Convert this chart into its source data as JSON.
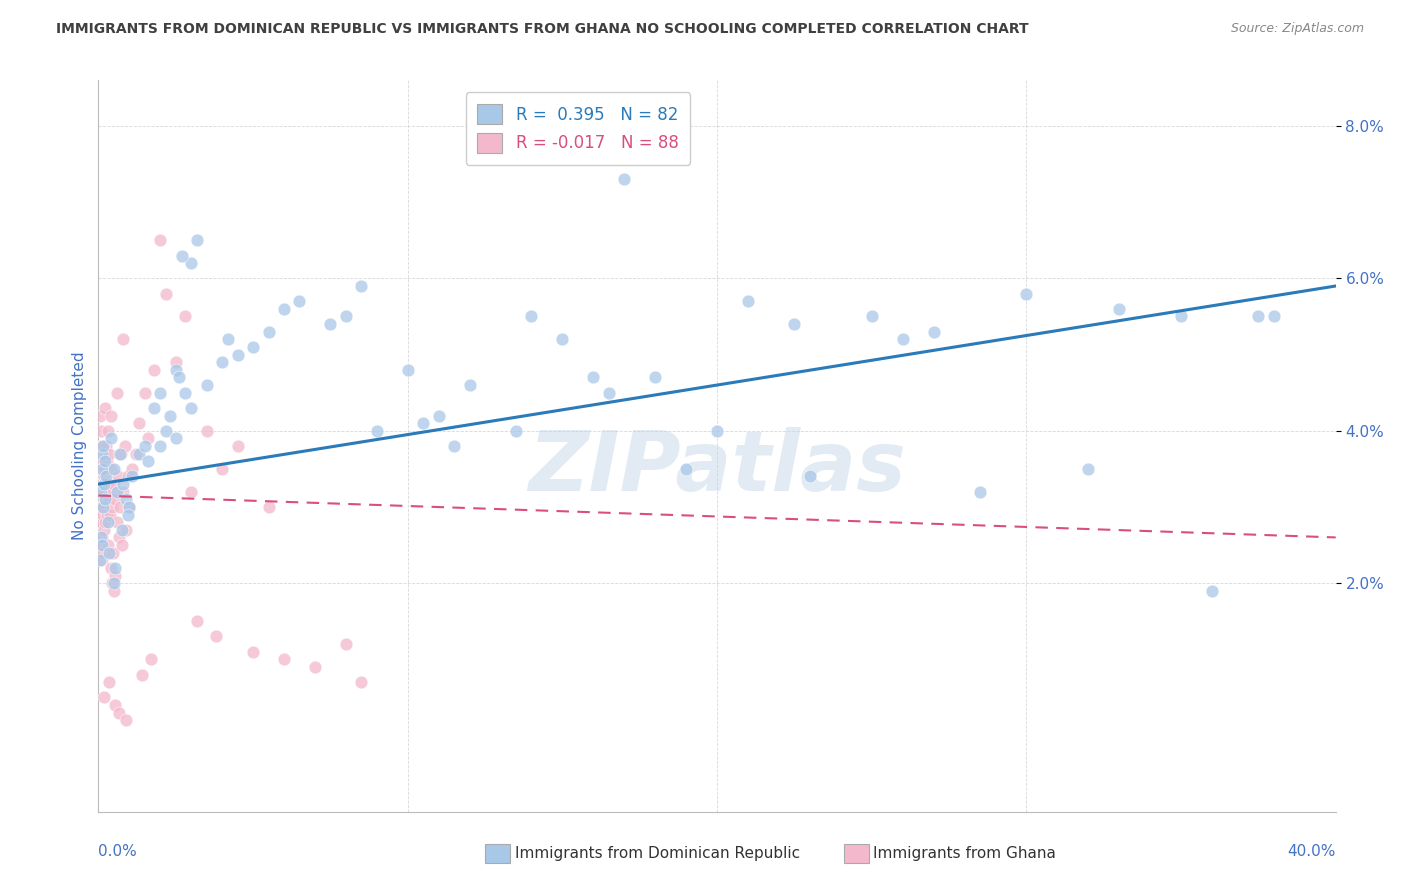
{
  "title": "IMMIGRANTS FROM DOMINICAN REPUBLIC VS IMMIGRANTS FROM GHANA NO SCHOOLING COMPLETED CORRELATION CHART",
  "source": "Source: ZipAtlas.com",
  "ylabel": "No Schooling Completed",
  "legend_blue_r": "R =  0.395",
  "legend_blue_n": "N = 82",
  "legend_pink_r": "R = -0.017",
  "legend_pink_n": "N = 88",
  "blue_color": "#a8c8e8",
  "pink_color": "#f4b8cc",
  "blue_line_color": "#2b7bba",
  "pink_line_color": "#d94f7a",
  "axis_label_color": "#4472c4",
  "grid_color": "#d8d8d8",
  "title_color": "#404040",
  "source_color": "#888888",
  "background": "#ffffff",
  "xlim": [
    0.0,
    40.0
  ],
  "ylim": [
    -1.0,
    8.6
  ],
  "ytick_vals": [
    2.0,
    4.0,
    6.0,
    8.0
  ],
  "xtick_vals": [
    0.0,
    10.0,
    20.0,
    30.0,
    40.0
  ],
  "blue_trend_x": [
    0.0,
    40.0
  ],
  "blue_trend_y": [
    3.3,
    5.9
  ],
  "pink_trend_x": [
    0.0,
    40.0
  ],
  "pink_trend_y": [
    3.15,
    2.6
  ],
  "watermark": "ZIPatlas",
  "blue_x": [
    0.05,
    0.07,
    0.08,
    0.1,
    0.1,
    0.12,
    0.15,
    0.15,
    0.18,
    0.2,
    0.2,
    0.25,
    0.3,
    0.4,
    0.5,
    0.5,
    0.6,
    0.7,
    0.8,
    0.9,
    1.0,
    1.1,
    1.3,
    1.5,
    1.6,
    1.8,
    2.0,
    2.0,
    2.2,
    2.3,
    2.5,
    2.5,
    2.6,
    2.8,
    3.0,
    3.0,
    3.2,
    3.5,
    4.0,
    4.5,
    5.0,
    5.5,
    6.5,
    7.5,
    8.5,
    10.0,
    11.0,
    12.0,
    13.5,
    15.0,
    16.5,
    18.0,
    20.0,
    21.0,
    22.5,
    25.0,
    27.0,
    30.0,
    33.0,
    35.0,
    37.5,
    2.7,
    4.2,
    6.0,
    8.0,
    9.0,
    10.5,
    11.5,
    14.0,
    16.0,
    19.0,
    23.0,
    26.0,
    28.5,
    32.0,
    36.0,
    38.0,
    17.0,
    0.35,
    0.55,
    0.75,
    0.95
  ],
  "blue_y": [
    2.3,
    2.6,
    3.2,
    3.7,
    2.5,
    3.5,
    3.0,
    3.8,
    3.3,
    3.1,
    3.6,
    3.4,
    2.8,
    3.9,
    2.0,
    3.5,
    3.2,
    3.7,
    3.3,
    3.1,
    3.0,
    3.4,
    3.7,
    3.8,
    3.6,
    4.3,
    4.5,
    3.8,
    4.0,
    4.2,
    4.8,
    3.9,
    4.7,
    4.5,
    4.3,
    6.2,
    6.5,
    4.6,
    4.9,
    5.0,
    5.1,
    5.3,
    5.7,
    5.4,
    5.9,
    4.8,
    4.2,
    4.6,
    4.0,
    5.2,
    4.5,
    4.7,
    4.0,
    5.7,
    5.4,
    5.5,
    5.3,
    5.8,
    5.6,
    5.5,
    5.5,
    6.3,
    5.2,
    5.6,
    5.5,
    4.0,
    4.1,
    3.8,
    5.5,
    4.7,
    3.5,
    3.4,
    5.2,
    3.2,
    3.5,
    1.9,
    5.5,
    7.3,
    2.4,
    2.2,
    2.7,
    2.9
  ],
  "pink_x": [
    0.02,
    0.03,
    0.05,
    0.05,
    0.05,
    0.07,
    0.07,
    0.08,
    0.08,
    0.1,
    0.1,
    0.1,
    0.12,
    0.12,
    0.12,
    0.15,
    0.15,
    0.15,
    0.18,
    0.18,
    0.2,
    0.2,
    0.2,
    0.22,
    0.22,
    0.25,
    0.25,
    0.28,
    0.28,
    0.3,
    0.3,
    0.32,
    0.35,
    0.35,
    0.38,
    0.4,
    0.4,
    0.42,
    0.45,
    0.45,
    0.48,
    0.5,
    0.5,
    0.55,
    0.55,
    0.6,
    0.62,
    0.65,
    0.7,
    0.72,
    0.75,
    0.8,
    0.85,
    0.9,
    0.95,
    1.0,
    1.1,
    1.2,
    1.3,
    1.5,
    1.8,
    2.0,
    2.2,
    2.5,
    2.8,
    3.0,
    3.5,
    4.0,
    4.5,
    5.5,
    0.4,
    0.6,
    0.8,
    1.6,
    3.2,
    3.8,
    5.0,
    6.0,
    7.0,
    8.0,
    8.5,
    0.17,
    0.33,
    0.52,
    0.68,
    0.88,
    1.4,
    1.7
  ],
  "pink_y": [
    3.5,
    3.0,
    2.5,
    3.8,
    4.2,
    2.8,
    3.2,
    3.5,
    4.0,
    2.3,
    3.0,
    3.6,
    2.6,
    3.3,
    3.8,
    2.4,
    2.9,
    3.5,
    2.7,
    3.4,
    3.1,
    3.7,
    4.3,
    2.8,
    3.5,
    3.2,
    3.8,
    2.9,
    3.6,
    3.3,
    4.0,
    2.5,
    3.1,
    3.7,
    2.9,
    2.2,
    3.5,
    3.2,
    2.0,
    3.0,
    2.4,
    1.9,
    3.3,
    2.1,
    3.1,
    2.8,
    3.4,
    2.6,
    3.0,
    3.7,
    2.5,
    3.2,
    3.8,
    2.7,
    3.4,
    3.0,
    3.5,
    3.7,
    4.1,
    4.5,
    4.8,
    6.5,
    5.8,
    4.9,
    5.5,
    3.2,
    4.0,
    3.5,
    3.8,
    3.0,
    4.2,
    4.5,
    5.2,
    3.9,
    1.5,
    1.3,
    1.1,
    1.0,
    0.9,
    1.2,
    0.7,
    0.5,
    0.7,
    0.4,
    0.3,
    0.2,
    0.8,
    1.0
  ]
}
